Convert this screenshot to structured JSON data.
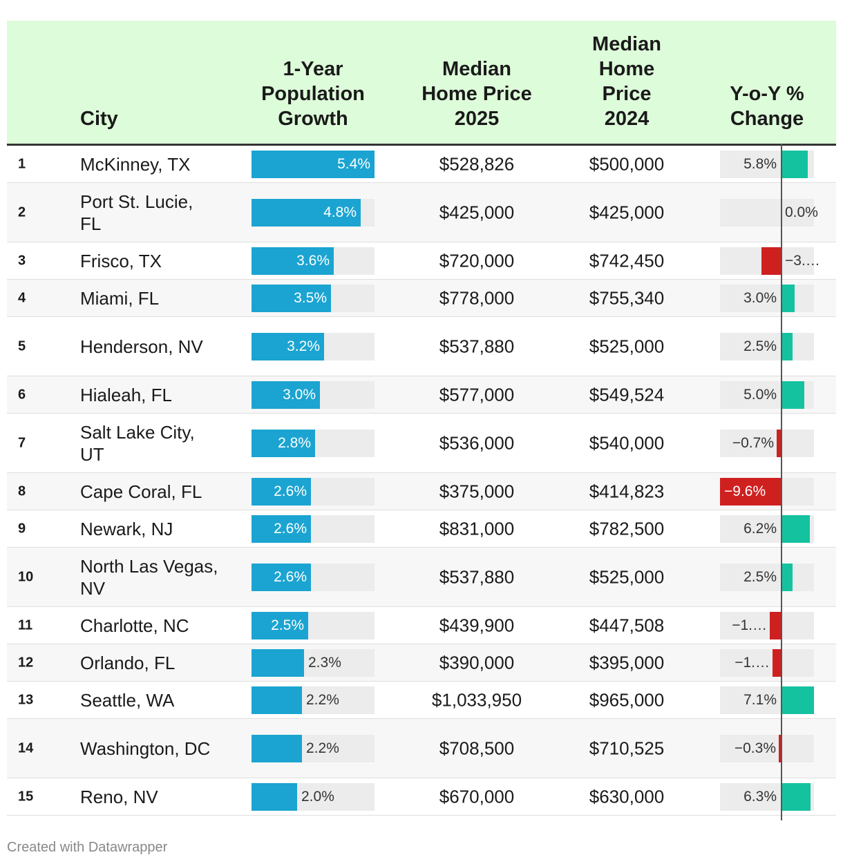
{
  "chart_data": {
    "type": "table",
    "columns": [
      "",
      "City",
      "1-Year\nPopulation\nGrowth",
      "Median\nHome Price\n2025",
      "Median\nHome\nPrice\n2024",
      "Y-o-Y %\nChange"
    ],
    "pop_max": 5.4,
    "yoy_range": [
      -9.6,
      7.1
    ],
    "colors": {
      "header_bg": "#ddfcd9",
      "pop_bar": "#1ba4d1",
      "yoy_pos": "#15c2a0",
      "yoy_neg": "#cf2020",
      "bar_bg": "#ececec"
    },
    "rows": [
      {
        "rank": "1",
        "city": "McKinney, TX",
        "pop_growth": 5.4,
        "pop_label": "5.4%",
        "price_2025": "$528,826",
        "price_2024": "$500,000",
        "yoy": 5.8,
        "yoy_label": "5.8%"
      },
      {
        "rank": "2",
        "city": "Port St. Lucie, FL",
        "pop_growth": 4.8,
        "pop_label": "4.8%",
        "price_2025": "$425,000",
        "price_2024": "$425,000",
        "yoy": 0.0,
        "yoy_label": "0.0%"
      },
      {
        "rank": "3",
        "city": "Frisco, TX",
        "pop_growth": 3.6,
        "pop_label": "3.6%",
        "price_2025": "$720,000",
        "price_2024": "$742,450",
        "yoy": -3.0,
        "yoy_label": "−3.…"
      },
      {
        "rank": "4",
        "city": "Miami, FL",
        "pop_growth": 3.5,
        "pop_label": "3.5%",
        "price_2025": "$778,000",
        "price_2024": "$755,340",
        "yoy": 3.0,
        "yoy_label": "3.0%"
      },
      {
        "rank": "5",
        "city": "Henderson, NV",
        "pop_growth": 3.2,
        "pop_label": "3.2%",
        "price_2025": "$537,880",
        "price_2024": "$525,000",
        "yoy": 2.5,
        "yoy_label": "2.5%"
      },
      {
        "rank": "6",
        "city": "Hialeah, FL",
        "pop_growth": 3.0,
        "pop_label": "3.0%",
        "price_2025": "$577,000",
        "price_2024": "$549,524",
        "yoy": 5.0,
        "yoy_label": "5.0%"
      },
      {
        "rank": "7",
        "city": "Salt Lake City, UT",
        "pop_growth": 2.8,
        "pop_label": "2.8%",
        "price_2025": "$536,000",
        "price_2024": "$540,000",
        "yoy": -0.7,
        "yoy_label": "−0.7%"
      },
      {
        "rank": "8",
        "city": "Cape Coral, FL",
        "pop_growth": 2.6,
        "pop_label": "2.6%",
        "price_2025": "$375,000",
        "price_2024": "$414,823",
        "yoy": -9.6,
        "yoy_label": "−9.6%"
      },
      {
        "rank": "9",
        "city": "Newark, NJ",
        "pop_growth": 2.6,
        "pop_label": "2.6%",
        "price_2025": "$831,000",
        "price_2024": "$782,500",
        "yoy": 6.2,
        "yoy_label": "6.2%"
      },
      {
        "rank": "10",
        "city": "North Las Vegas, NV",
        "pop_growth": 2.6,
        "pop_label": "2.6%",
        "price_2025": "$537,880",
        "price_2024": "$525,000",
        "yoy": 2.5,
        "yoy_label": "2.5%"
      },
      {
        "rank": "11",
        "city": "Charlotte, NC",
        "pop_growth": 2.5,
        "pop_label": "2.5%",
        "price_2025": "$439,900",
        "price_2024": "$447,508",
        "yoy": -1.7,
        "yoy_label": "−1.…"
      },
      {
        "rank": "12",
        "city": "Orlando, FL",
        "pop_growth": 2.3,
        "pop_label": "2.3%",
        "price_2025": "$390,000",
        "price_2024": "$395,000",
        "yoy": -1.3,
        "yoy_label": "−1.…"
      },
      {
        "rank": "13",
        "city": "Seattle, WA",
        "pop_growth": 2.2,
        "pop_label": "2.2%",
        "price_2025": "$1,033,950",
        "price_2024": "$965,000",
        "yoy": 7.1,
        "yoy_label": "7.1%"
      },
      {
        "rank": "14",
        "city": "Washington, DC",
        "pop_growth": 2.2,
        "pop_label": "2.2%",
        "price_2025": "$708,500",
        "price_2024": "$710,525",
        "yoy": -0.3,
        "yoy_label": "−0.3%"
      },
      {
        "rank": "15",
        "city": "Reno, NV",
        "pop_growth": 2.0,
        "pop_label": "2.0%",
        "price_2025": "$670,000",
        "price_2024": "$630,000",
        "yoy": 6.3,
        "yoy_label": "6.3%"
      }
    ]
  },
  "footer": "Created with Datawrapper"
}
